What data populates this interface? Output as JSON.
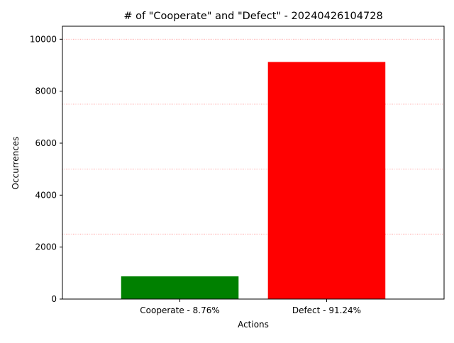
{
  "chart_data": {
    "type": "bar",
    "title": "# of \"Cooperate\" and \"Defect\" - 20240426104728",
    "xlabel": "Actions",
    "ylabel": "Occurrences",
    "categories": [
      "Cooperate - 8.76%",
      "Defect - 91.24%"
    ],
    "values": [
      876,
      9124
    ],
    "colors": [
      "#008000",
      "#ff0000"
    ],
    "ylim": [
      0,
      10500
    ],
    "yticks": [
      0,
      2000,
      4000,
      6000,
      8000,
      10000
    ],
    "grid": {
      "axis": "y",
      "color": "#ff9999",
      "style": "dotted",
      "values": [
        2500,
        5000,
        7500,
        10000
      ]
    }
  }
}
